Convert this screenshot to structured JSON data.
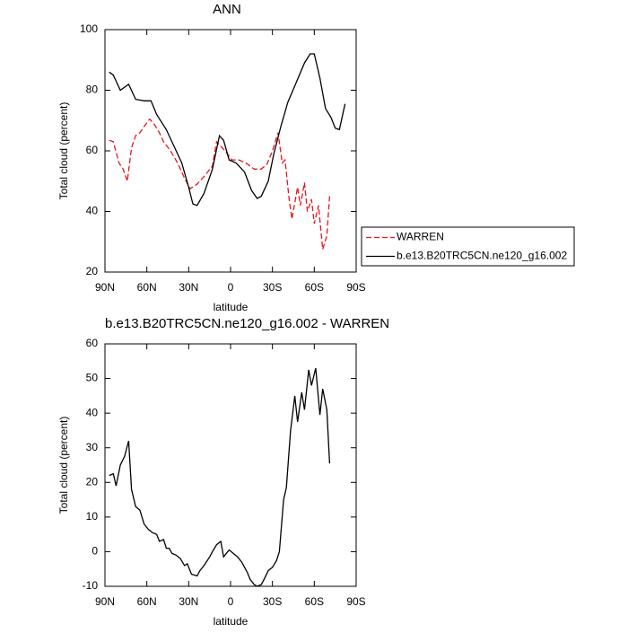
{
  "chart_data": [
    {
      "type": "line",
      "title": "ANN",
      "xlabel": "latitude",
      "ylabel": "Total cloud (percent)",
      "xlim": [
        90,
        -90
      ],
      "xticks": [
        {
          "value": 90,
          "label": "90N"
        },
        {
          "value": 60,
          "label": "60N"
        },
        {
          "value": 30,
          "label": "30N"
        },
        0,
        {
          "value": -30,
          "label": "30S"
        },
        {
          "value": -60,
          "label": "60S"
        },
        {
          "value": -90,
          "label": "90S"
        }
      ],
      "ylim": [
        20,
        100
      ],
      "yticks": [
        20,
        40,
        60,
        80,
        100
      ],
      "legend": "outside-right",
      "series": [
        {
          "name": "WARREN",
          "color": "#e8141c",
          "dash": true,
          "x": [
            87,
            84,
            80,
            77,
            74,
            71,
            68,
            65,
            62,
            58,
            55,
            51,
            48,
            43,
            38,
            33,
            29,
            24,
            19,
            13,
            10,
            4,
            -1,
            -6,
            -11,
            -17,
            -22,
            -26,
            -30,
            -34,
            -37,
            -39,
            -42,
            -44,
            -48,
            -50,
            -53,
            -55,
            -58,
            -60,
            -63,
            -66,
            -69,
            -71
          ],
          "values": [
            63.5,
            63,
            56,
            54,
            50,
            61,
            65,
            66,
            68,
            70.5,
            69,
            66,
            63,
            60,
            56,
            51,
            47.5,
            49,
            51.5,
            55,
            63,
            60,
            57,
            57,
            56,
            54,
            54,
            55.5,
            60,
            66,
            56,
            57,
            44,
            37.5,
            48,
            42,
            49.5,
            40,
            44,
            36,
            42,
            27.5,
            32,
            45
          ]
        },
        {
          "name": "b.e13.B20TRC5CN.ne120_g16.002",
          "color": "#000000",
          "dash": false,
          "x": [
            87,
            84,
            79,
            73,
            68,
            62,
            57,
            53,
            46,
            40,
            35,
            30,
            27,
            24,
            19,
            13,
            8,
            5,
            1,
            -4,
            -10,
            -15,
            -19,
            -22,
            -27,
            -31,
            -36,
            -41,
            -47,
            -53,
            -57,
            -60,
            -64,
            -68,
            -72,
            -75,
            -78,
            -82
          ],
          "values": [
            86,
            85,
            80,
            82,
            77,
            76.5,
            76.5,
            72,
            67,
            61,
            56,
            48,
            42.5,
            42,
            46,
            54,
            65,
            63.5,
            57,
            56,
            53,
            47,
            44.3,
            45,
            50,
            59,
            68,
            76,
            82.5,
            89,
            92,
            92,
            84,
            74,
            71,
            67.5,
            67,
            75.5
          ]
        }
      ]
    },
    {
      "type": "line",
      "title": "b.e13.B20TRC5CN.ne120_g16.002 - WARREN",
      "xlabel": "latitude",
      "ylabel": "Total cloud (percent)",
      "xlim": [
        90,
        -90
      ],
      "xticks": [
        {
          "value": 90,
          "label": "90N"
        },
        {
          "value": 60,
          "label": "60N"
        },
        {
          "value": 30,
          "label": "30N"
        },
        0,
        {
          "value": -30,
          "label": "30S"
        },
        {
          "value": -60,
          "label": "60S"
        },
        {
          "value": -90,
          "label": "90S"
        }
      ],
      "ylim": [
        -10,
        60
      ],
      "yticks": [
        -10,
        0,
        10,
        20,
        30,
        40,
        50,
        60
      ],
      "color": "#000000",
      "x": [
        87,
        84,
        82,
        79,
        76,
        73,
        71,
        68,
        65,
        62,
        59,
        56,
        53,
        51,
        48,
        46,
        44,
        42,
        39,
        36,
        33,
        31,
        28,
        24,
        22,
        19,
        15,
        13,
        10,
        7,
        5,
        1,
        -2,
        -5,
        -8,
        -12,
        -14,
        -17,
        -19,
        -22,
        -24,
        -27,
        -30,
        -33,
        -35,
        -38,
        -40,
        -43,
        -46,
        -48,
        -51,
        -53,
        -56,
        -58,
        -61,
        -64,
        -66,
        -69,
        -71
      ],
      "values": [
        22,
        22.5,
        19,
        25,
        27.5,
        32,
        18,
        13,
        12,
        8,
        6.5,
        5.5,
        5,
        3,
        3.5,
        1,
        1,
        -0.5,
        -1,
        -2,
        -4,
        -3.5,
        -6.5,
        -7,
        -5.5,
        -4,
        -1.5,
        0,
        2,
        3,
        -1.5,
        0.5,
        -0.5,
        -1.5,
        -3,
        -6,
        -8,
        -9.5,
        -10,
        -9.5,
        -8,
        -5.5,
        -4.5,
        -2.5,
        0,
        15,
        18.5,
        35,
        45,
        37.5,
        46,
        41,
        52.5,
        48,
        53,
        39.5,
        47,
        41,
        25.5
      ]
    }
  ]
}
